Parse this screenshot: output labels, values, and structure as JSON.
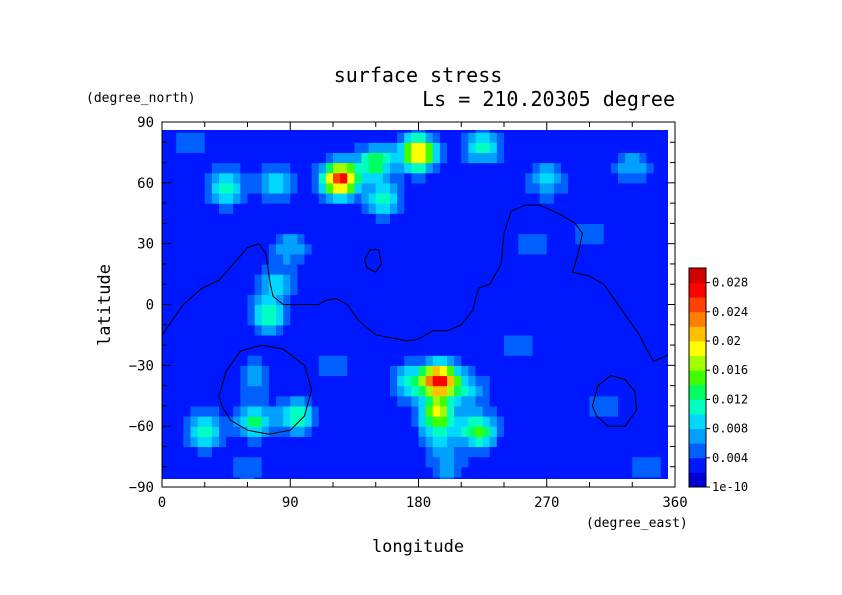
{
  "chart_data": {
    "type": "heatmap",
    "title": "surface stress",
    "subtitle": "Ls = 210.20305 degree",
    "xlabel": "longitude",
    "ylabel": "latitude",
    "xunits": "(degree_east)",
    "yunits": "(degree_north)",
    "xlim": [
      0,
      360
    ],
    "ylim": [
      -90,
      90
    ],
    "x_ticks": [
      "0",
      "90",
      "180",
      "270",
      "360"
    ],
    "y_ticks": [
      "90",
      "60",
      "30",
      "0",
      "−30",
      "−60",
      "−90"
    ],
    "x_tick_values": [
      0,
      90,
      180,
      270,
      360
    ],
    "y_tick_values": [
      90,
      60,
      30,
      0,
      -30,
      -60,
      -90
    ],
    "colorbar": {
      "labels": [
        "1e-10",
        "0.004",
        "0.008",
        "0.012",
        "0.016",
        "0.02",
        "0.024",
        "0.028"
      ],
      "values": [
        0,
        0.004,
        0.008,
        0.012,
        0.016,
        0.02,
        0.024,
        0.028
      ],
      "max": 0.03,
      "colors": [
        "#0000d0",
        "#0018ff",
        "#0060ff",
        "#00a0ff",
        "#00d8ff",
        "#00ffc0",
        "#00ff60",
        "#40ff00",
        "#a0ff00",
        "#ffff00",
        "#ffc000",
        "#ff8000",
        "#ff4000",
        "#ff0000",
        "#d00000"
      ]
    },
    "background_value": 0.0025,
    "hotspots": [
      {
        "lon": 125,
        "lat": 62,
        "value": 0.027
      },
      {
        "lon": 180,
        "lat": 75,
        "value": 0.022
      },
      {
        "lon": 150,
        "lat": 70,
        "value": 0.014
      },
      {
        "lon": 80,
        "lat": 60,
        "value": 0.009
      },
      {
        "lon": 45,
        "lat": 58,
        "value": 0.012
      },
      {
        "lon": 225,
        "lat": 78,
        "value": 0.011
      },
      {
        "lon": 270,
        "lat": 62,
        "value": 0.009
      },
      {
        "lon": 330,
        "lat": 68,
        "value": 0.008
      },
      {
        "lon": 155,
        "lat": 52,
        "value": 0.011
      },
      {
        "lon": 90,
        "lat": 28,
        "value": 0.008
      },
      {
        "lon": 80,
        "lat": 10,
        "value": 0.009
      },
      {
        "lon": 75,
        "lat": -5,
        "value": 0.012
      },
      {
        "lon": 65,
        "lat": -35,
        "value": 0.007
      },
      {
        "lon": 30,
        "lat": -62,
        "value": 0.012
      },
      {
        "lon": 65,
        "lat": -57,
        "value": 0.013
      },
      {
        "lon": 95,
        "lat": -55,
        "value": 0.012
      },
      {
        "lon": 195,
        "lat": -37,
        "value": 0.027
      },
      {
        "lon": 175,
        "lat": -38,
        "value": 0.011
      },
      {
        "lon": 215,
        "lat": -42,
        "value": 0.009
      },
      {
        "lon": 193,
        "lat": -53,
        "value": 0.017
      },
      {
        "lon": 222,
        "lat": -62,
        "value": 0.015
      },
      {
        "lon": 195,
        "lat": -65,
        "value": 0.009
      },
      {
        "lon": 260,
        "lat": 30,
        "value": 0.006
      },
      {
        "lon": 300,
        "lat": 35,
        "value": 0.005
      },
      {
        "lon": 310,
        "lat": -50,
        "value": 0.006
      },
      {
        "lon": 200,
        "lat": -80,
        "value": 0.007
      },
      {
        "lon": 340,
        "lat": -80,
        "value": 0.006
      },
      {
        "lon": 60,
        "lat": -82,
        "value": 0.006
      },
      {
        "lon": 20,
        "lat": 80,
        "value": 0.006
      },
      {
        "lon": 120,
        "lat": -30,
        "value": 0.006
      },
      {
        "lon": 250,
        "lat": -20,
        "value": 0.005
      }
    ],
    "contours": [
      [
        [
          0,
          -15
        ],
        [
          5,
          -10
        ],
        [
          15,
          0
        ],
        [
          28,
          8
        ],
        [
          40,
          12
        ],
        [
          50,
          20
        ],
        [
          60,
          28
        ],
        [
          68,
          30
        ],
        [
          73,
          25
        ],
        [
          76,
          10
        ],
        [
          78,
          4
        ],
        [
          85,
          0
        ],
        [
          100,
          0
        ],
        [
          110,
          0
        ],
        [
          115,
          2
        ],
        [
          122,
          3
        ],
        [
          130,
          0
        ],
        [
          138,
          -8
        ],
        [
          150,
          -15
        ],
        [
          165,
          -17
        ],
        [
          172,
          -18
        ],
        [
          180,
          -17
        ],
        [
          190,
          -13
        ],
        [
          200,
          -13
        ],
        [
          210,
          -10
        ],
        [
          218,
          -3
        ],
        [
          222,
          8
        ],
        [
          230,
          10
        ],
        [
          238,
          20
        ],
        [
          240,
          35
        ],
        [
          245,
          46
        ],
        [
          255,
          49
        ],
        [
          265,
          49
        ],
        [
          278,
          45
        ],
        [
          290,
          40
        ],
        [
          295,
          35
        ],
        [
          292,
          25
        ],
        [
          288,
          16
        ],
        [
          300,
          14
        ],
        [
          310,
          10
        ],
        [
          315,
          5
        ],
        [
          325,
          -5
        ],
        [
          335,
          -15
        ],
        [
          340,
          -22
        ],
        [
          345,
          -28
        ],
        [
          355,
          -25
        ],
        [
          360,
          -20
        ]
      ],
      [
        [
          142,
          22
        ],
        [
          146,
          27
        ],
        [
          152,
          27
        ],
        [
          154,
          20
        ],
        [
          150,
          16
        ],
        [
          144,
          18
        ],
        [
          142,
          22
        ]
      ],
      [
        [
          40,
          -45
        ],
        [
          45,
          -33
        ],
        [
          55,
          -23
        ],
        [
          70,
          -20
        ],
        [
          85,
          -22
        ],
        [
          100,
          -30
        ],
        [
          105,
          -42
        ],
        [
          100,
          -55
        ],
        [
          90,
          -62
        ],
        [
          75,
          -64
        ],
        [
          60,
          -62
        ],
        [
          48,
          -57
        ],
        [
          42,
          -50
        ],
        [
          40,
          -45
        ]
      ],
      [
        [
          302,
          -50
        ],
        [
          306,
          -40
        ],
        [
          315,
          -35
        ],
        [
          325,
          -37
        ],
        [
          332,
          -43
        ],
        [
          333,
          -52
        ],
        [
          325,
          -60
        ],
        [
          313,
          -60
        ],
        [
          305,
          -55
        ],
        [
          302,
          -50
        ]
      ]
    ]
  }
}
